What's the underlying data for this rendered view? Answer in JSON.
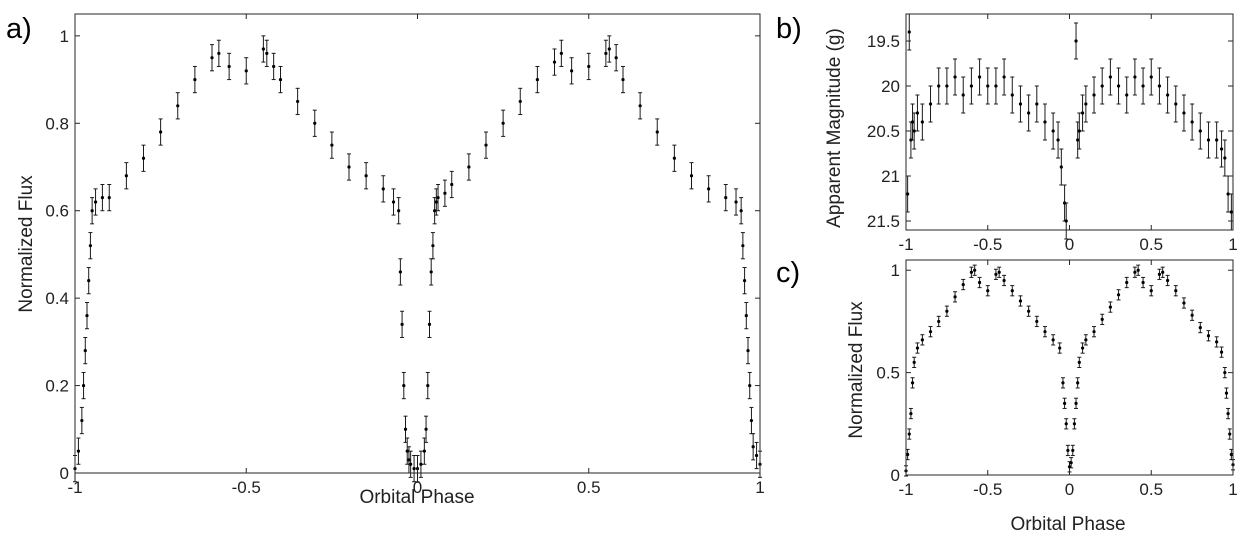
{
  "chart_data": [
    {
      "panel_label": "a)",
      "type": "scatter",
      "xlabel": "Orbital Phase",
      "ylabel": "Normalized Flux",
      "xlim": [
        -1,
        1
      ],
      "ylim": [
        0,
        1.05
      ],
      "y_inverted": false,
      "xticks": [
        -1,
        -0.5,
        0,
        0.5,
        1
      ],
      "xtick_labels": [
        "-1",
        "-0.5",
        "0",
        "0.5",
        "1"
      ],
      "yticks": [
        0,
        0.2,
        0.4,
        0.6,
        0.8,
        1
      ],
      "ytick_labels": [
        "0",
        "0.2",
        "0.4",
        "0.6",
        "0.8",
        "1"
      ],
      "error_bars": true,
      "grid": false,
      "series": [
        {
          "x": [
            -1,
            -0.99,
            -0.98,
            -0.975,
            -0.97,
            -0.965,
            -0.96,
            -0.955,
            -0.95,
            -0.94,
            -0.92,
            -0.9,
            -0.85,
            -0.8,
            -0.75,
            -0.7,
            -0.65,
            -0.6,
            -0.58,
            -0.55,
            -0.5,
            -0.45,
            -0.44,
            -0.42,
            -0.4,
            -0.35,
            -0.3,
            -0.25,
            -0.2,
            -0.15,
            -0.1,
            -0.07,
            -0.055,
            -0.05,
            -0.045,
            -0.04,
            -0.035,
            -0.03,
            -0.025,
            -0.02,
            -0.01,
            0,
            0.01,
            0.02,
            0.025,
            0.03,
            0.035,
            0.04,
            0.045,
            0.05,
            0.055,
            0.06,
            0.08,
            0.1,
            0.15,
            0.2,
            0.25,
            0.3,
            0.35,
            0.4,
            0.42,
            0.45,
            0.5,
            0.55,
            0.56,
            0.58,
            0.6,
            0.65,
            0.7,
            0.75,
            0.8,
            0.85,
            0.9,
            0.93,
            0.945,
            0.95,
            0.955,
            0.96,
            0.965,
            0.97,
            0.975,
            0.98,
            0.99,
            1
          ],
          "y": [
            0.01,
            0.05,
            0.12,
            0.2,
            0.28,
            0.36,
            0.44,
            0.52,
            0.6,
            0.62,
            0.63,
            0.63,
            0.68,
            0.72,
            0.78,
            0.84,
            0.9,
            0.95,
            0.96,
            0.93,
            0.92,
            0.97,
            0.96,
            0.93,
            0.9,
            0.85,
            0.8,
            0.75,
            0.7,
            0.68,
            0.65,
            0.62,
            0.6,
            0.46,
            0.34,
            0.2,
            0.1,
            0.05,
            0.03,
            0.02,
            0.01,
            0.01,
            0.02,
            0.05,
            0.1,
            0.2,
            0.34,
            0.46,
            0.52,
            0.6,
            0.62,
            0.63,
            0.64,
            0.66,
            0.7,
            0.75,
            0.8,
            0.85,
            0.9,
            0.94,
            0.96,
            0.92,
            0.93,
            0.96,
            0.97,
            0.95,
            0.9,
            0.84,
            0.78,
            0.72,
            0.68,
            0.65,
            0.63,
            0.62,
            0.6,
            0.52,
            0.44,
            0.36,
            0.28,
            0.2,
            0.12,
            0.06,
            0.04,
            0.02
          ],
          "err": 0.03
        }
      ]
    },
    {
      "panel_label": "b)",
      "type": "scatter",
      "xlabel": "",
      "ylabel": "Apparent Magnitude (g)",
      "xlim": [
        -1,
        1
      ],
      "ylim": [
        19.2,
        21.6
      ],
      "y_inverted": true,
      "xticks": [
        -1,
        -0.5,
        0,
        0.5,
        1
      ],
      "xtick_labels": [
        "-1",
        "-0.5",
        "0",
        "0.5",
        "1"
      ],
      "yticks": [
        19.5,
        20,
        20.5,
        21,
        21.5
      ],
      "ytick_labels": [
        "19.5",
        "20",
        "20.5",
        "21",
        "21.5"
      ],
      "error_bars": true,
      "grid": false,
      "series": [
        {
          "x": [
            -0.99,
            -0.98,
            -0.97,
            -0.96,
            -0.95,
            -0.93,
            -0.9,
            -0.85,
            -0.8,
            -0.75,
            -0.7,
            -0.65,
            -0.6,
            -0.55,
            -0.5,
            -0.45,
            -0.4,
            -0.35,
            -0.3,
            -0.25,
            -0.2,
            -0.15,
            -0.1,
            -0.07,
            -0.05,
            -0.03,
            -0.02,
            0.04,
            0.05,
            0.06,
            0.08,
            0.1,
            0.15,
            0.2,
            0.25,
            0.3,
            0.35,
            0.4,
            0.45,
            0.5,
            0.55,
            0.6,
            0.65,
            0.7,
            0.75,
            0.8,
            0.85,
            0.9,
            0.93,
            0.95,
            0.97,
            0.99
          ],
          "y": [
            21.2,
            19.4,
            20.6,
            20.4,
            20.5,
            20.3,
            20.4,
            20.2,
            20.0,
            20.0,
            19.9,
            20.1,
            20.0,
            19.9,
            20.0,
            20.0,
            19.9,
            20.1,
            20.2,
            20.3,
            20.2,
            20.4,
            20.5,
            20.6,
            20.9,
            21.3,
            21.5,
            19.5,
            20.6,
            20.5,
            20.3,
            20.2,
            20.1,
            20.0,
            19.9,
            20.0,
            20.1,
            19.9,
            20.0,
            19.9,
            20.0,
            20.1,
            20.2,
            20.3,
            20.4,
            20.5,
            20.6,
            20.6,
            20.7,
            20.8,
            21.2,
            21.4
          ],
          "err": 0.2
        }
      ]
    },
    {
      "panel_label": "c)",
      "type": "scatter",
      "xlabel": "Orbital Phase",
      "ylabel": "Normalized Flux",
      "xlim": [
        -1,
        1
      ],
      "ylim": [
        0,
        1.05
      ],
      "y_inverted": false,
      "xticks": [
        -1,
        -0.5,
        0,
        0.5,
        1
      ],
      "xtick_labels": [
        "-1",
        "-0.5",
        "0",
        "0.5",
        "1"
      ],
      "yticks": [
        0,
        0.5,
        1
      ],
      "ytick_labels": [
        "0",
        "0.5",
        "1"
      ],
      "error_bars": true,
      "grid": false,
      "series": [
        {
          "x": [
            -1,
            -0.99,
            -0.98,
            -0.97,
            -0.96,
            -0.95,
            -0.93,
            -0.9,
            -0.85,
            -0.8,
            -0.75,
            -0.7,
            -0.65,
            -0.6,
            -0.58,
            -0.55,
            -0.5,
            -0.45,
            -0.43,
            -0.4,
            -0.35,
            -0.3,
            -0.25,
            -0.2,
            -0.15,
            -0.1,
            -0.06,
            -0.04,
            -0.03,
            -0.02,
            -0.01,
            0,
            0.01,
            0.02,
            0.03,
            0.04,
            0.05,
            0.06,
            0.08,
            0.1,
            0.15,
            0.2,
            0.25,
            0.3,
            0.35,
            0.4,
            0.42,
            0.45,
            0.5,
            0.55,
            0.57,
            0.6,
            0.65,
            0.7,
            0.75,
            0.8,
            0.85,
            0.9,
            0.93,
            0.95,
            0.96,
            0.97,
            0.98,
            0.99,
            1
          ],
          "y": [
            0.02,
            0.1,
            0.2,
            0.3,
            0.45,
            0.55,
            0.62,
            0.66,
            0.7,
            0.75,
            0.8,
            0.87,
            0.93,
            0.99,
            1.0,
            0.94,
            0.9,
            0.98,
            0.99,
            0.95,
            0.9,
            0.85,
            0.8,
            0.75,
            0.7,
            0.66,
            0.62,
            0.45,
            0.35,
            0.25,
            0.12,
            0.04,
            0.06,
            0.12,
            0.25,
            0.35,
            0.45,
            0.55,
            0.62,
            0.66,
            0.7,
            0.76,
            0.82,
            0.88,
            0.94,
            0.99,
            1.0,
            0.94,
            0.9,
            0.98,
            0.99,
            0.95,
            0.9,
            0.84,
            0.78,
            0.72,
            0.68,
            0.65,
            0.6,
            0.5,
            0.4,
            0.3,
            0.2,
            0.1,
            0.05
          ],
          "err": 0.025
        }
      ]
    }
  ]
}
